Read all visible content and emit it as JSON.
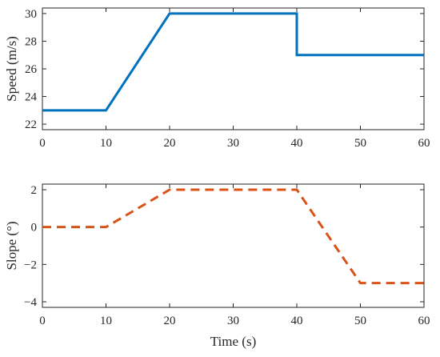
{
  "chart_data": [
    {
      "type": "line",
      "xlabel": "",
      "ylabel": "Speed (m/s)",
      "xlim": [
        0,
        60
      ],
      "ylim": [
        21.6,
        30.4
      ],
      "xticks": [
        0,
        10,
        20,
        30,
        40,
        50,
        60
      ],
      "yticks": [
        22,
        24,
        26,
        28,
        30
      ],
      "grid": false,
      "series": [
        {
          "style": "solid",
          "color": "#0072BD",
          "x": [
            0,
            10,
            20,
            40,
            40,
            60
          ],
          "y": [
            23,
            23,
            30,
            30,
            27,
            27
          ]
        }
      ]
    },
    {
      "type": "line",
      "xlabel": "Time (s)",
      "ylabel": "Slope (°)",
      "xlim": [
        0,
        60
      ],
      "ylim": [
        -4.3,
        2.3
      ],
      "xticks": [
        0,
        10,
        20,
        30,
        40,
        50,
        60
      ],
      "yticks": [
        -4,
        -2,
        0,
        2
      ],
      "grid": false,
      "series": [
        {
          "style": "dashed",
          "color": "#D95319",
          "x": [
            0,
            10,
            20,
            40,
            50,
            60
          ],
          "y": [
            0,
            0,
            2,
            2,
            -3,
            -3
          ]
        }
      ]
    }
  ]
}
